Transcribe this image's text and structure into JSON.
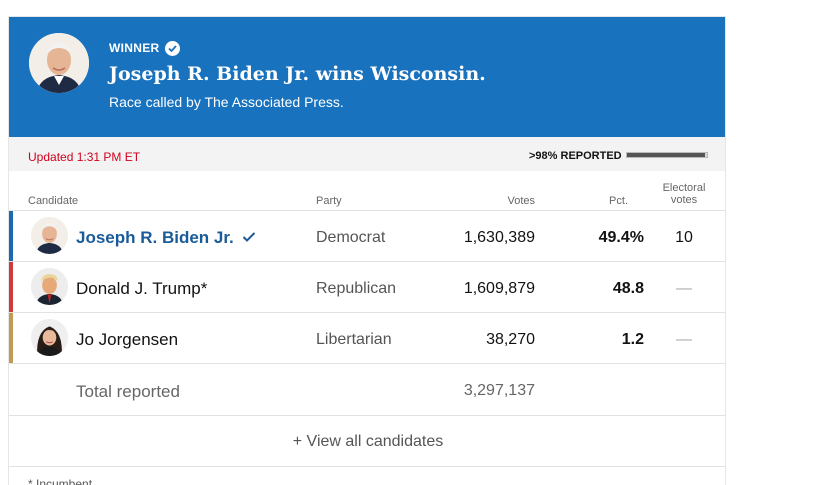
{
  "banner": {
    "winner_label": "WINNER",
    "title": "Joseph R. Biden Jr. wins Wisconsin.",
    "subtitle": "Race called by The Associated Press.",
    "background_color": "#1872bd"
  },
  "status": {
    "updated": "Updated 1:31 PM ET",
    "reported": ">98% REPORTED",
    "reported_fraction": 0.98
  },
  "table": {
    "headers": {
      "candidate": "Candidate",
      "party": "Party",
      "votes": "Votes",
      "pct": "Pct.",
      "electoral": "Electoral votes"
    },
    "rows": [
      {
        "name": "Joseph R. Biden Jr.",
        "party": "Democrat",
        "votes": "1,630,389",
        "pct": "49.4%",
        "electoral": "10",
        "color": "#1a6aad",
        "winner": true
      },
      {
        "name": "Donald J. Trump*",
        "party": "Republican",
        "votes": "1,609,879",
        "pct": "48.8",
        "electoral": "—",
        "color": "#cf3a3a",
        "winner": false
      },
      {
        "name": "Jo Jorgensen",
        "party": "Libertarian",
        "votes": "38,270",
        "pct": "1.2",
        "electoral": "—",
        "color": "#c29a58",
        "winner": false
      }
    ],
    "total": {
      "label": "Total reported",
      "votes": "3,297,137"
    }
  },
  "view_all": "+ View all candidates",
  "footnote": "* Incumbent"
}
